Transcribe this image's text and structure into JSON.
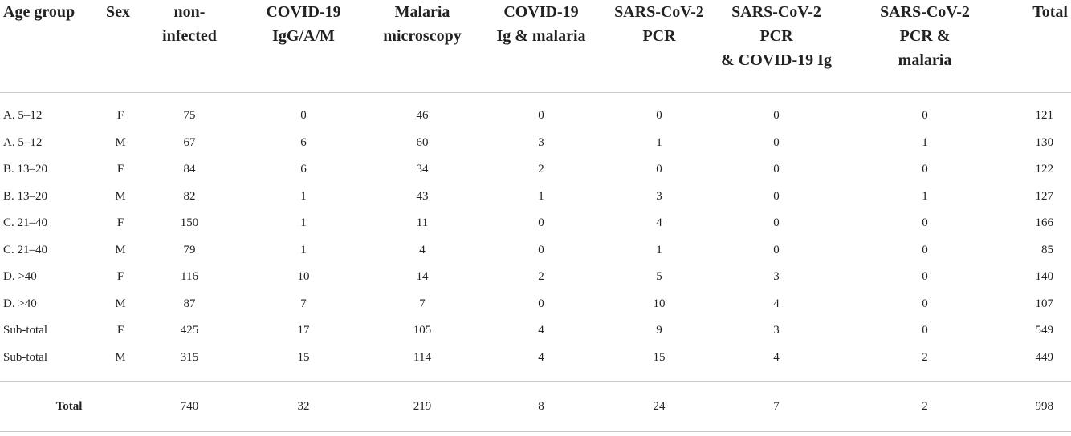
{
  "table": {
    "headers": [
      "Age group",
      "Sex",
      "non-\ninfected",
      "COVID-19\nIgG/A/M",
      "Malaria\nmicroscopy",
      "COVID-19\nIg & malaria",
      "SARS-CoV-2\nPCR",
      "SARS-CoV-2 PCR\n& COVID-19 Ig",
      "SARS-CoV-2\nPCR &\nmalaria",
      "Total"
    ],
    "rows": [
      [
        "A. 5–12",
        "F",
        "75",
        "0",
        "46",
        "0",
        "0",
        "0",
        "0",
        "121"
      ],
      [
        "A. 5–12",
        "M",
        "67",
        "6",
        "60",
        "3",
        "1",
        "0",
        "1",
        "130"
      ],
      [
        "B. 13–20",
        "F",
        "84",
        "6",
        "34",
        "2",
        "0",
        "0",
        "0",
        "122"
      ],
      [
        "B. 13–20",
        "M",
        "82",
        "1",
        "43",
        "1",
        "3",
        "0",
        "1",
        "127"
      ],
      [
        "C. 21–40",
        "F",
        "150",
        "1",
        "11",
        "0",
        "4",
        "0",
        "0",
        "166"
      ],
      [
        "C. 21–40",
        "M",
        "79",
        "1",
        "4",
        "0",
        "1",
        "0",
        "0",
        "85"
      ],
      [
        "D. >40",
        "F",
        "116",
        "10",
        "14",
        "2",
        "5",
        "3",
        "0",
        "140"
      ],
      [
        "D. >40",
        "M",
        "87",
        "7",
        "7",
        "0",
        "10",
        "4",
        "0",
        "107"
      ],
      [
        "Sub-total",
        "F",
        "425",
        "17",
        "105",
        "4",
        "9",
        "3",
        "0",
        "549"
      ],
      [
        "Sub-total",
        "M",
        "315",
        "15",
        "114",
        "4",
        "15",
        "4",
        "2",
        "449"
      ]
    ],
    "total_row": {
      "label": "Total",
      "values": [
        "740",
        "32",
        "219",
        "8",
        "24",
        "7",
        "2",
        "998"
      ]
    }
  }
}
